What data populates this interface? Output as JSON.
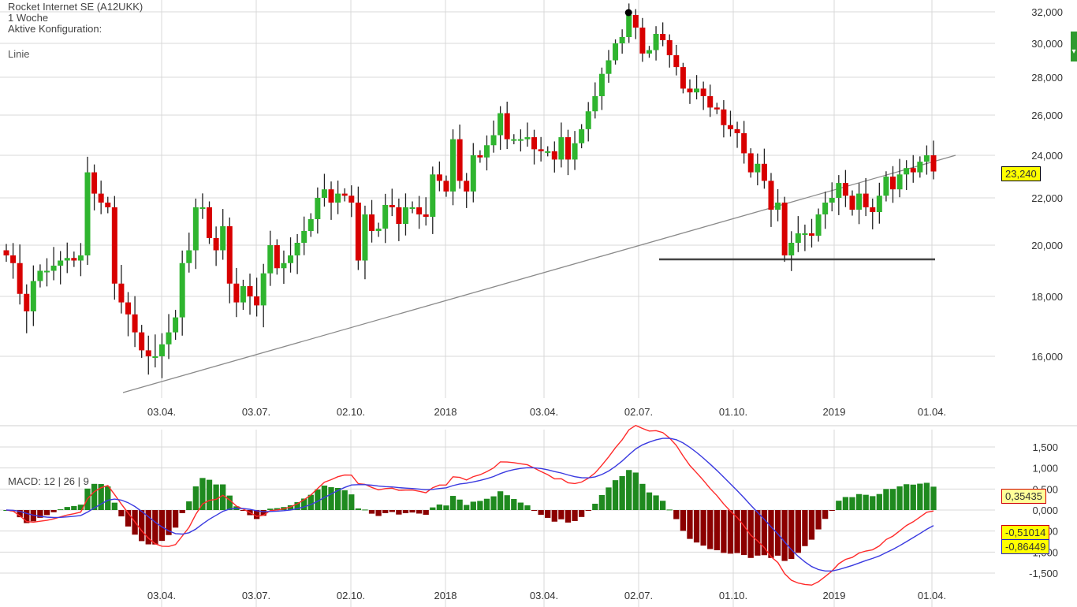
{
  "header": {
    "title": "Rocket Internet SE (A12UKK)",
    "interval": "1 Woche",
    "config_label": "Aktive Konfiguration:",
    "chart_type": "Linie"
  },
  "badges": {
    "last_price": "23,240",
    "macd_hist": "0,35435",
    "macd_line": "-0,51014",
    "signal_line": "-0,86449"
  },
  "colors": {
    "up": "#2fb52f",
    "down": "#d80000",
    "hist_up": "#1f8a1f",
    "hist_down": "#8b0000",
    "macd": "#ff2a2a",
    "signal": "#3a3ae0",
    "grid": "#d8d8d8"
  },
  "chart_data": [
    {
      "type": "candlestick",
      "title": "Rocket Internet SE (A12UKK)",
      "x_tick_labels": [
        "03.04.",
        "03.07.",
        "02.10.",
        "2018",
        "03.04.",
        "02.07.",
        "01.10.",
        "2019",
        "01.04."
      ],
      "y_tick_labels": [
        "16,000",
        "18,000",
        "20,000",
        "22,000",
        "24,000",
        "26,000",
        "28,000",
        "30,000",
        "32,000"
      ],
      "y_ticks": [
        16000,
        18000,
        20000,
        22000,
        24000,
        26000,
        28000,
        30000,
        32000
      ],
      "ylim": [
        15000,
        32500
      ],
      "grid": true,
      "closes": [
        19600,
        19300,
        18100,
        17500,
        18600,
        19000,
        19000,
        19200,
        19400,
        19500,
        19400,
        19600,
        23200,
        22200,
        21800,
        21600,
        18500,
        17800,
        17400,
        16800,
        16200,
        16000,
        16000,
        16400,
        16800,
        17300,
        19300,
        19800,
        21600,
        21600,
        20300,
        19800,
        20800,
        18500,
        17800,
        18400,
        18000,
        17700,
        18900,
        20000,
        19100,
        19300,
        19600,
        20100,
        20600,
        21100,
        22000,
        22400,
        21800,
        22200,
        22100,
        21800,
        19400,
        21300,
        20600,
        20700,
        21700,
        21600,
        20900,
        21600,
        21600,
        21300,
        21200,
        23100,
        22800,
        22300,
        24800,
        22800,
        22300,
        24000,
        23900,
        24500,
        25000,
        26100,
        24800,
        24800,
        24800,
        24900,
        24300,
        24200,
        24200,
        23800,
        24900,
        23800,
        24600,
        25300,
        26200,
        27000,
        28200,
        29000,
        30000,
        30400,
        31800,
        31000,
        29400,
        29600,
        30600,
        30200,
        29300,
        28600,
        27400,
        27200,
        27400,
        27000,
        26400,
        26300,
        25500,
        25300,
        25100,
        24100,
        23200,
        23600,
        22800,
        21500,
        21800,
        19600,
        20100,
        20500,
        20500,
        20400,
        21300,
        21800,
        22000,
        22700,
        22100,
        21500,
        22200,
        21600,
        21400,
        22100,
        23000,
        22400,
        23100,
        23400,
        23200,
        23700,
        24000,
        23240
      ]
    },
    {
      "type": "macd",
      "legend": "MACD: 12 | 26 | 9",
      "y_tick_labels": [
        "-1,500",
        "-1,000",
        "-0,500",
        "0,000",
        "0,500",
        "1,000",
        "1,500"
      ],
      "y_ticks": [
        -1500,
        -1000,
        -500,
        0,
        500,
        1000,
        1500
      ],
      "ylim": [
        -1750,
        1850
      ],
      "x_tick_labels": [
        "03.04.",
        "03.07.",
        "02.10.",
        "2018",
        "03.04.",
        "02.07.",
        "01.10.",
        "2019",
        "01.04."
      ],
      "last_values": {
        "histogram": 0.35435,
        "macd": -0.51014,
        "signal": -0.86449
      }
    }
  ]
}
